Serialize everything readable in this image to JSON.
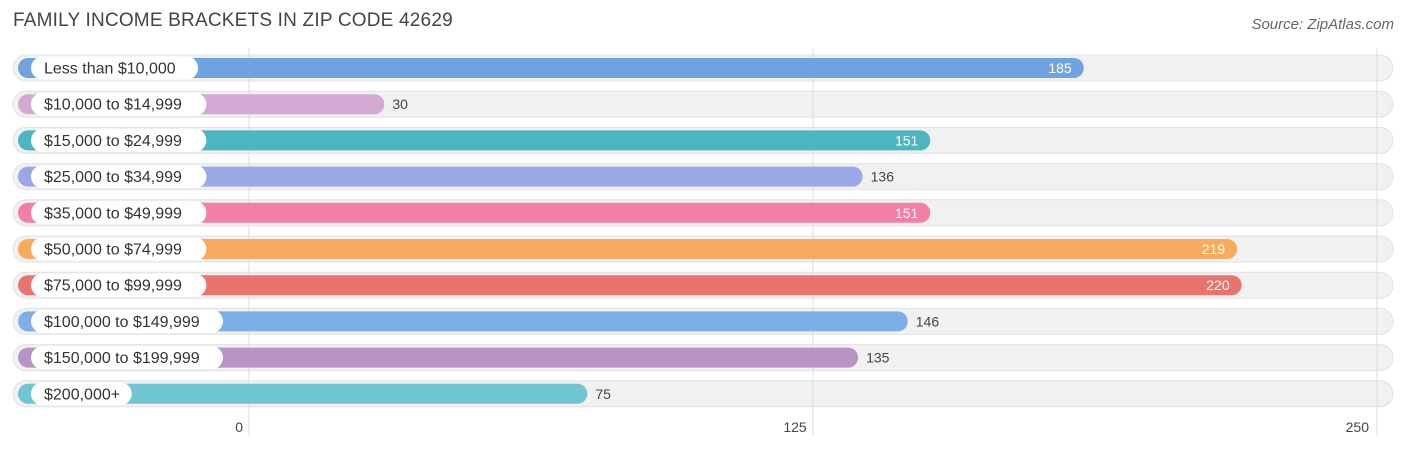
{
  "title": "FAMILY INCOME BRACKETS IN ZIP CODE 42629",
  "source": "Source: ZipAtlas.com",
  "chart_data": {
    "type": "bar",
    "orientation": "horizontal",
    "title": "FAMILY INCOME BRACKETS IN ZIP CODE 42629",
    "categories": [
      "Less than $10,000",
      "$10,000 to $14,999",
      "$15,000 to $24,999",
      "$25,000 to $34,999",
      "$35,000 to $49,999",
      "$50,000 to $74,999",
      "$75,000 to $99,999",
      "$100,000 to $149,999",
      "$150,000 to $199,999",
      "$200,000+"
    ],
    "values": [
      185,
      30,
      151,
      136,
      151,
      219,
      220,
      146,
      135,
      75
    ],
    "colors": [
      "#6fa4e0",
      "#d4a9d4",
      "#4db5c0",
      "#9aa8e6",
      "#f47fa5",
      "#f8ab5e",
      "#e9746d",
      "#7eaee8",
      "#b893c6",
      "#6fc6d2"
    ],
    "xlim": [
      0,
      250
    ],
    "xticks": [
      0,
      125,
      250
    ],
    "grid": true,
    "value_labels_inside": [
      true,
      false,
      true,
      false,
      true,
      true,
      true,
      false,
      false,
      false
    ]
  }
}
